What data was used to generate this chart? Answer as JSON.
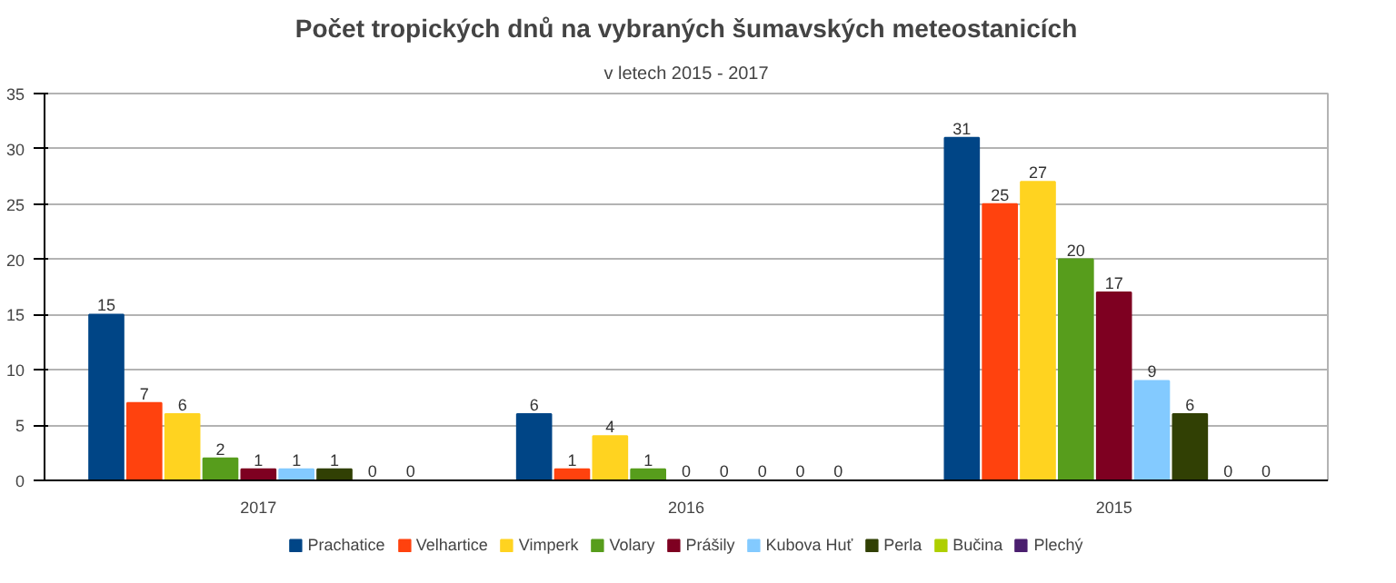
{
  "chart_data": {
    "type": "bar",
    "title": "Počet tropických dnů na vybraných šumavských meteostanicích",
    "subtitle": "v letech 2015 - 2017",
    "categories": [
      "2017",
      "2016",
      "2015"
    ],
    "series": [
      {
        "name": "Prachatice",
        "color": "#004586",
        "values": [
          15,
          6,
          31
        ]
      },
      {
        "name": "Velhartice",
        "color": "#ff420e",
        "values": [
          7,
          1,
          25
        ]
      },
      {
        "name": "Vimperk",
        "color": "#ffd320",
        "values": [
          6,
          4,
          27
        ]
      },
      {
        "name": "Volary",
        "color": "#579d1c",
        "values": [
          2,
          1,
          20
        ]
      },
      {
        "name": "Prášily",
        "color": "#7e0021",
        "values": [
          1,
          0,
          17
        ]
      },
      {
        "name": "Kubova Huť",
        "color": "#83caff",
        "values": [
          1,
          0,
          9
        ]
      },
      {
        "name": "Perla",
        "color": "#314004",
        "values": [
          1,
          0,
          6
        ]
      },
      {
        "name": "Bučina",
        "color": "#aecf00",
        "values": [
          0,
          0,
          0
        ]
      },
      {
        "name": "Plechý",
        "color": "#4b1f6f",
        "values": [
          0,
          0,
          0
        ]
      }
    ],
    "ylim": [
      0,
      35
    ],
    "yticks": [
      0,
      5,
      10,
      15,
      20,
      25,
      30,
      35
    ],
    "grid": "y",
    "legend": "bottom",
    "data_labels": true
  }
}
